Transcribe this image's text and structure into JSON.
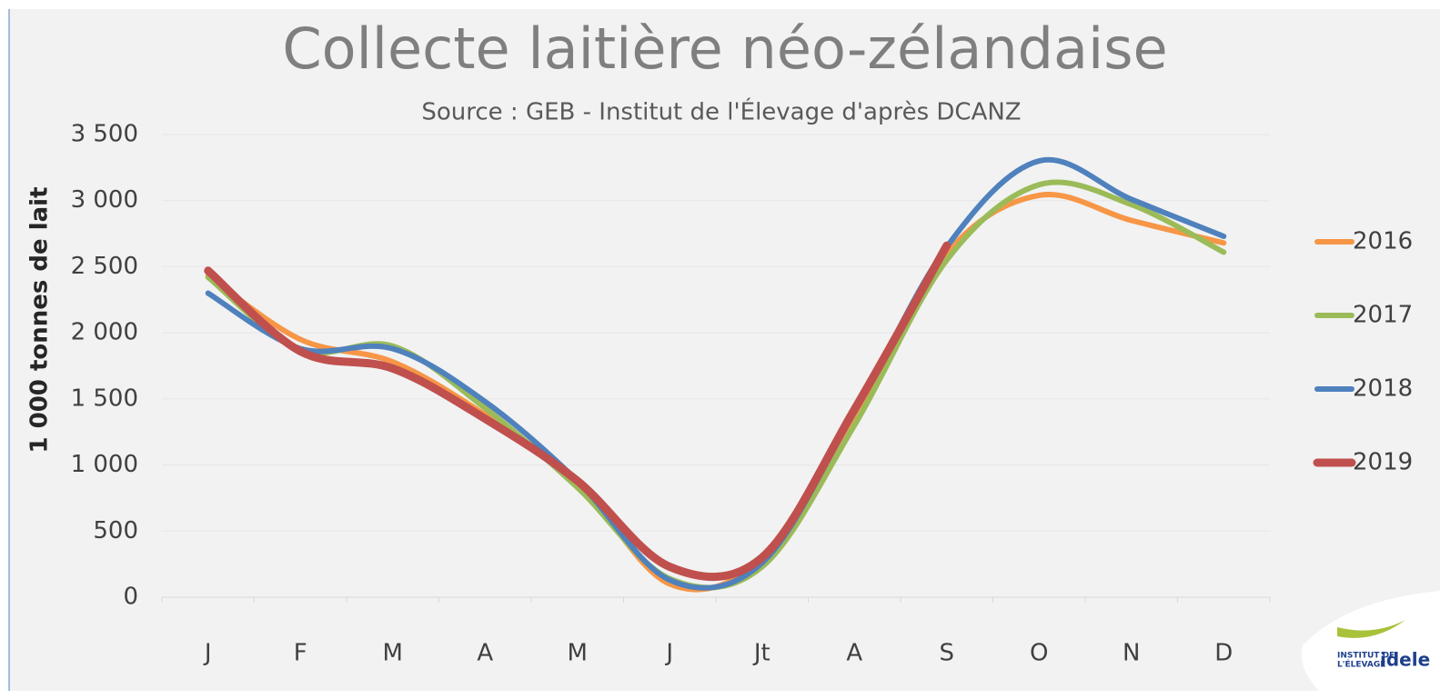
{
  "chart_data": {
    "type": "line",
    "title": "Collecte laitière néo-zélandaise",
    "subtitle": "Source : GEB - Institut de l'Élevage d'après DCANZ",
    "y_label": "1 000 tonnes de lait",
    "categories": [
      "J",
      "F",
      "M",
      "A",
      "M",
      "J",
      "Jt",
      "A",
      "S",
      "O",
      "N",
      "D"
    ],
    "series": [
      {
        "name": "2016",
        "color": "#f79646",
        "values": [
          2430,
          1950,
          1780,
          1380,
          870,
          100,
          290,
          1380,
          2600,
          3040,
          2850,
          2680
        ]
      },
      {
        "name": "2017",
        "color": "#9bbb59",
        "values": [
          2420,
          1870,
          1900,
          1430,
          830,
          140,
          230,
          1300,
          2550,
          3120,
          2970,
          2610
        ]
      },
      {
        "name": "2018",
        "color": "#4f81bd",
        "values": [
          2300,
          1880,
          1880,
          1480,
          880,
          130,
          260,
          1400,
          2650,
          3300,
          3010,
          2730
        ]
      },
      {
        "name": "2019",
        "color": "#c0504d",
        "values": [
          2470,
          1860,
          1730,
          1350,
          880,
          230,
          300,
          1420,
          2660,
          null,
          null,
          null
        ]
      }
    ],
    "ylim": [
      0,
      3500
    ],
    "yticks": [
      0,
      500,
      {
        "value": 1000,
        "label": "1 000"
      },
      {
        "value": 1500,
        "label": "1 500"
      },
      {
        "value": 2000,
        "label": "2 000"
      },
      {
        "value": 2500,
        "label": "2 500"
      },
      {
        "value": 3000,
        "label": "3 000"
      },
      {
        "value": 3500,
        "label": "3 500"
      }
    ],
    "grid": true,
    "legend": "right",
    "logo": {
      "line1": "INSTITUT DE",
      "line2": "L'ÉLEVAGE",
      "brand": "idele"
    }
  }
}
